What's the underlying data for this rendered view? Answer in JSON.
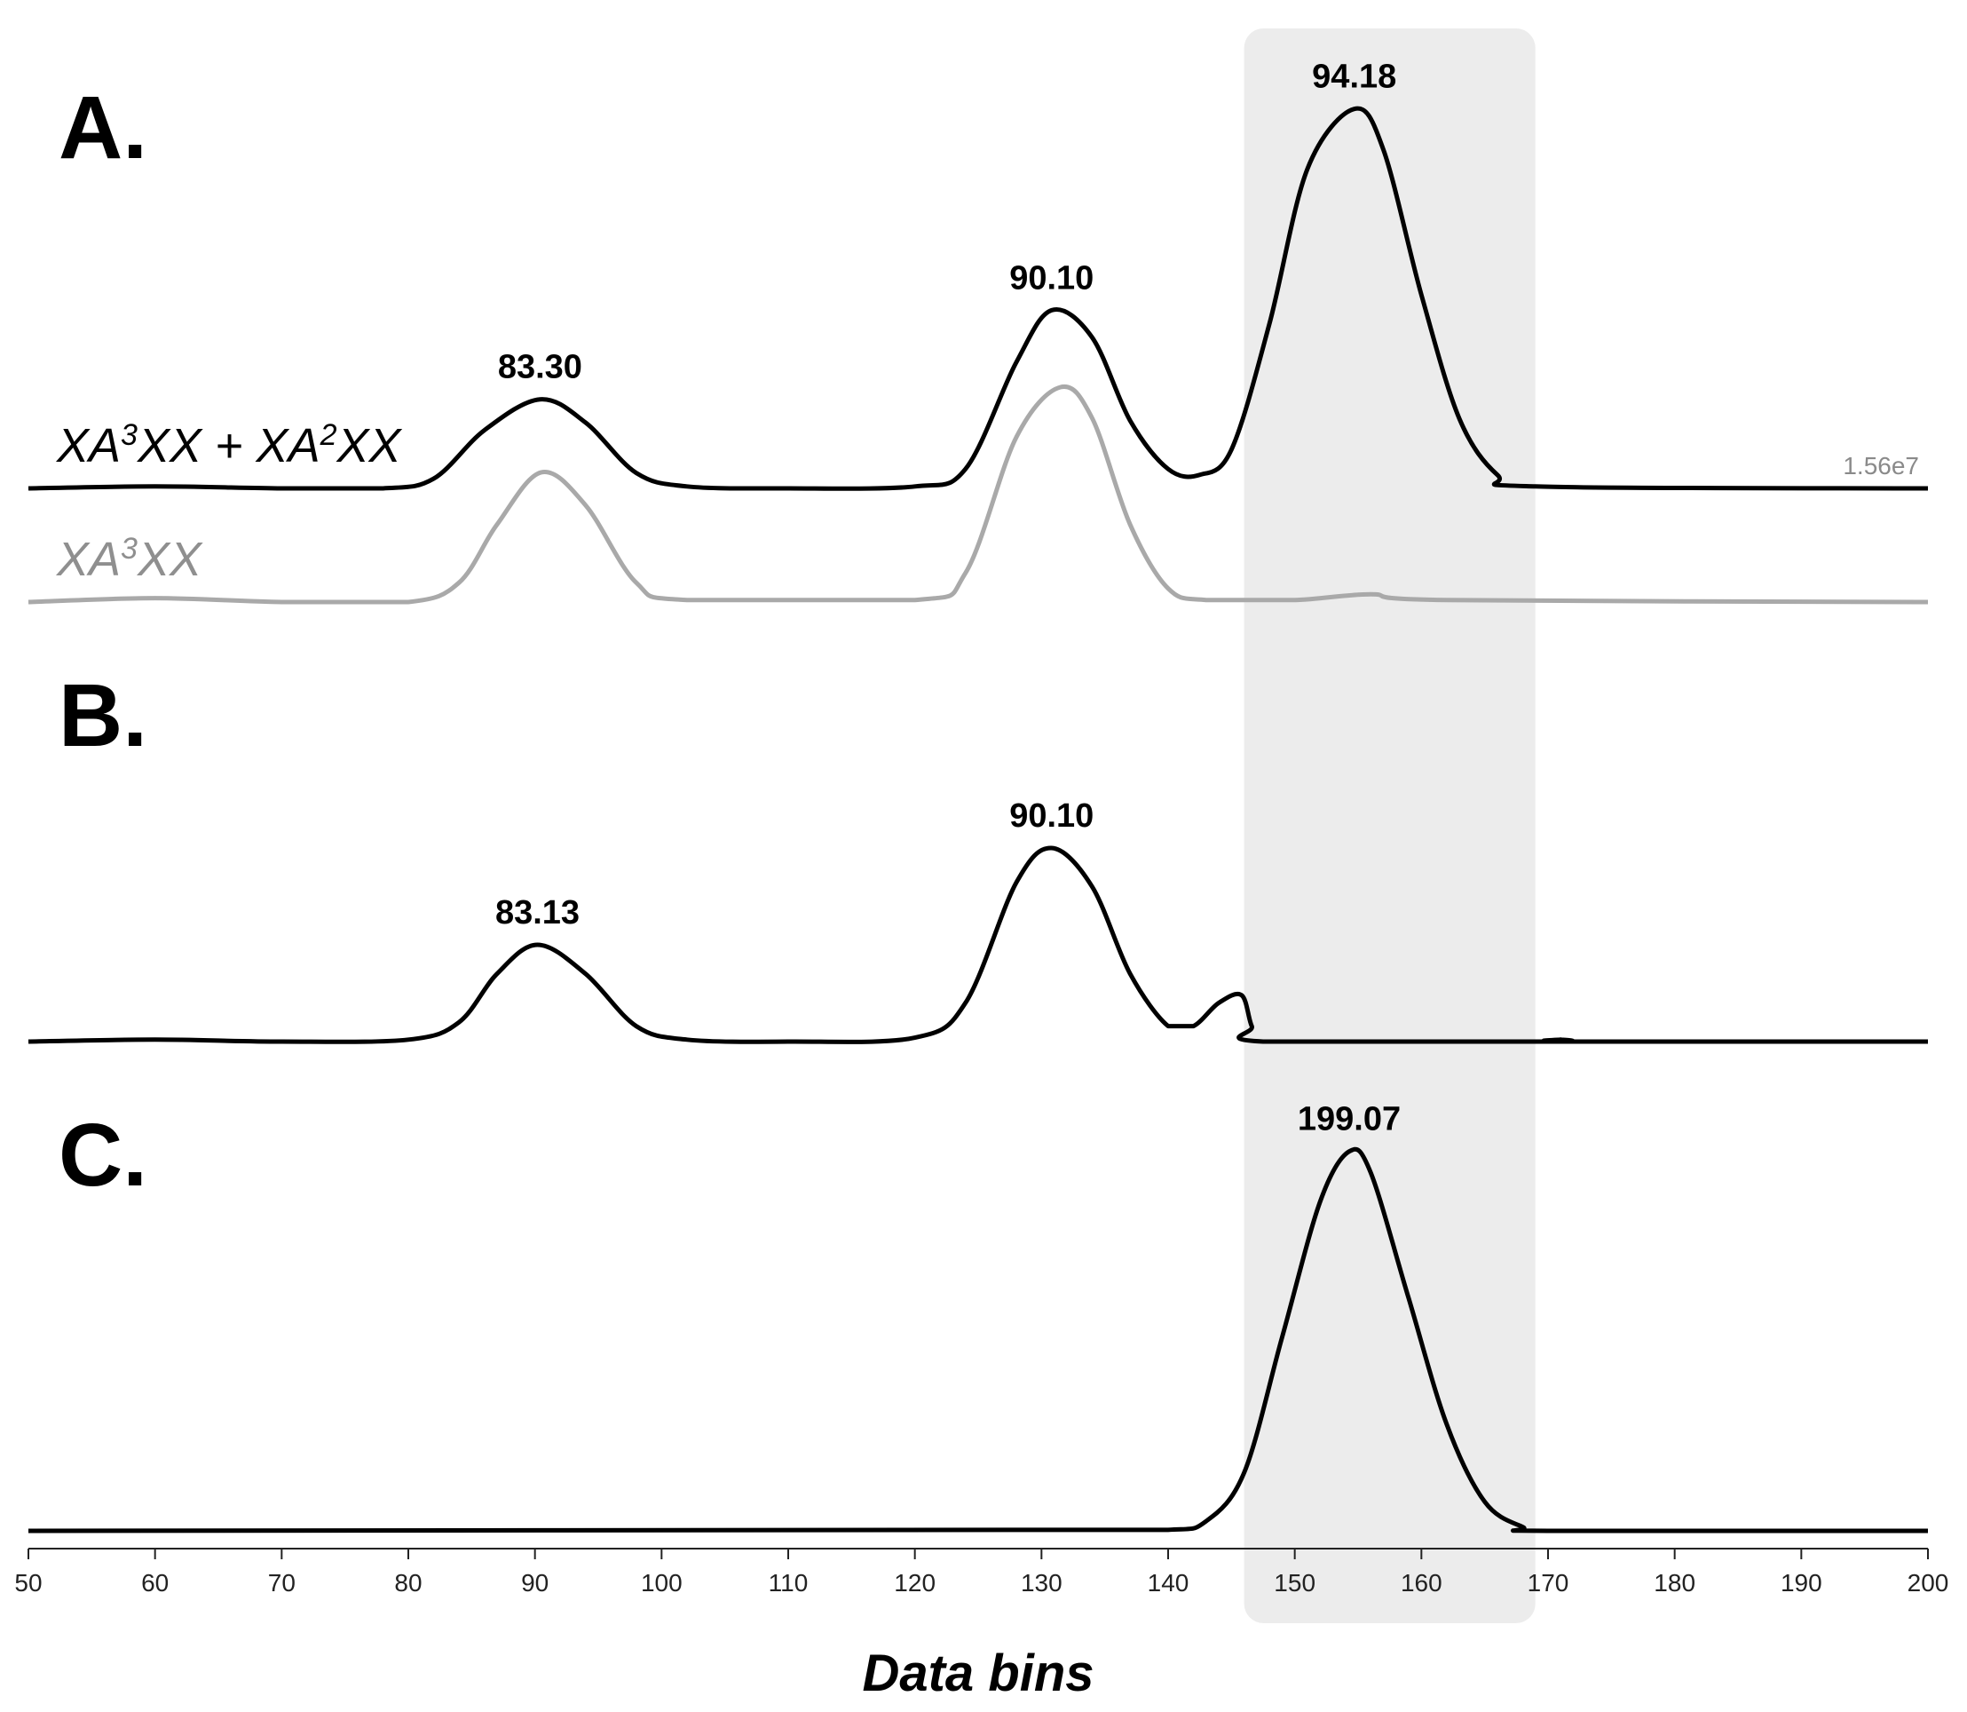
{
  "chart_data": {
    "type": "line",
    "xlabel": "Data bins",
    "xlim": [
      50,
      200
    ],
    "xticks": [
      50,
      60,
      70,
      80,
      90,
      100,
      110,
      120,
      130,
      140,
      150,
      160,
      170,
      180,
      190,
      200
    ],
    "highlight_range": [
      146,
      169
    ],
    "highlight_color": "#ececec",
    "scale_label": "1.56e7",
    "panels": [
      {
        "letter": "A.",
        "series": [
          {
            "name_main": "XA",
            "name_sup1": "3",
            "name_mid": "XX + XA",
            "name_sup2": "2",
            "name_end": "XX",
            "color": "#000000",
            "points": [
              [
                50,
                0
              ],
              [
                60,
                0.01
              ],
              [
                70,
                0
              ],
              [
                78,
                0
              ],
              [
                82,
                0.05
              ],
              [
                86,
                0.3
              ],
              [
                90.4,
                0.46
              ],
              [
                94,
                0.34
              ],
              [
                98,
                0.08
              ],
              [
                102,
                0.01
              ],
              [
                110,
                0
              ],
              [
                120,
                0.01
              ],
              [
                124,
                0.1
              ],
              [
                128,
                0.65
              ],
              [
                130.8,
                0.92
              ],
              [
                134,
                0.78
              ],
              [
                137,
                0.35
              ],
              [
                140,
                0.1
              ],
              [
                142.5,
                0.07
              ],
              [
                145,
                0.2
              ],
              [
                148,
                0.85
              ],
              [
                151,
                1.65
              ],
              [
                154.7,
                1.96
              ],
              [
                157,
                1.75
              ],
              [
                160,
                1.0
              ],
              [
                163,
                0.36
              ],
              [
                166,
                0.07
              ],
              [
                169,
                0.01
              ],
              [
                200,
                0
              ]
            ],
            "peaks": [
              {
                "x": 90.4,
                "label": "83.30"
              },
              {
                "x": 130.8,
                "label": "90.10"
              },
              {
                "x": 154.7,
                "label": "94.18"
              }
            ]
          },
          {
            "name_main": "XA",
            "name_sup1": "3",
            "name_end": "XX",
            "color": "#a9a9a9",
            "points": [
              [
                50,
                0
              ],
              [
                60,
                0.02
              ],
              [
                70,
                0
              ],
              [
                80,
                0
              ],
              [
                84,
                0.1
              ],
              [
                87,
                0.4
              ],
              [
                90.5,
                0.67
              ],
              [
                94,
                0.5
              ],
              [
                98,
                0.1
              ],
              [
                102,
                0.01
              ],
              [
                120,
                0.01
              ],
              [
                124,
                0.15
              ],
              [
                128,
                0.85
              ],
              [
                131.5,
                1.11
              ],
              [
                134,
                0.95
              ],
              [
                137,
                0.4
              ],
              [
                140,
                0.07
              ],
              [
                143,
                0.01
              ],
              [
                150,
                0.01
              ],
              [
                156,
                0.04
              ],
              [
                162,
                0.01
              ],
              [
                200,
                0
              ]
            ]
          }
        ]
      },
      {
        "letter": "B.",
        "series": [
          {
            "color": "#000000",
            "points": [
              [
                50,
                0
              ],
              [
                60,
                0.01
              ],
              [
                70,
                0
              ],
              [
                80,
                0.01
              ],
              [
                84,
                0.1
              ],
              [
                87,
                0.35
              ],
              [
                90.2,
                0.5
              ],
              [
                94,
                0.35
              ],
              [
                98,
                0.08
              ],
              [
                102,
                0.01
              ],
              [
                110,
                0
              ],
              [
                120,
                0.02
              ],
              [
                124,
                0.2
              ],
              [
                128,
                0.82
              ],
              [
                130.8,
                1.0
              ],
              [
                134,
                0.8
              ],
              [
                137,
                0.35
              ],
              [
                140,
                0.08
              ],
              [
                142,
                0.08
              ],
              [
                144,
                0.2
              ],
              [
                145.8,
                0.24
              ],
              [
                146.6,
                0.08
              ],
              [
                147.5,
                0
              ],
              [
                170,
                0
              ],
              [
                171,
                0.01
              ],
              [
                172,
                0
              ],
              [
                200,
                0
              ]
            ],
            "peaks": [
              {
                "x": 90.2,
                "label": "83.13"
              },
              {
                "x": 130.8,
                "label": "90.10"
              }
            ]
          }
        ]
      },
      {
        "letter": "C.",
        "series": [
          {
            "color": "#000000",
            "points": [
              [
                50,
                0
              ],
              [
                130,
                0.005
              ],
              [
                140,
                0.005
              ],
              [
                143,
                0.05
              ],
              [
                146,
                0.3
              ],
              [
                149,
                1.0
              ],
              [
                152,
                1.7
              ],
              [
                154.3,
                1.96
              ],
              [
                156,
                1.85
              ],
              [
                159,
                1.2
              ],
              [
                162,
                0.55
              ],
              [
                165,
                0.15
              ],
              [
                168,
                0.02
              ],
              [
                170,
                0
              ],
              [
                200,
                0
              ]
            ],
            "peaks": [
              {
                "x": 154.3,
                "label": "199.07"
              }
            ]
          }
        ]
      }
    ]
  }
}
